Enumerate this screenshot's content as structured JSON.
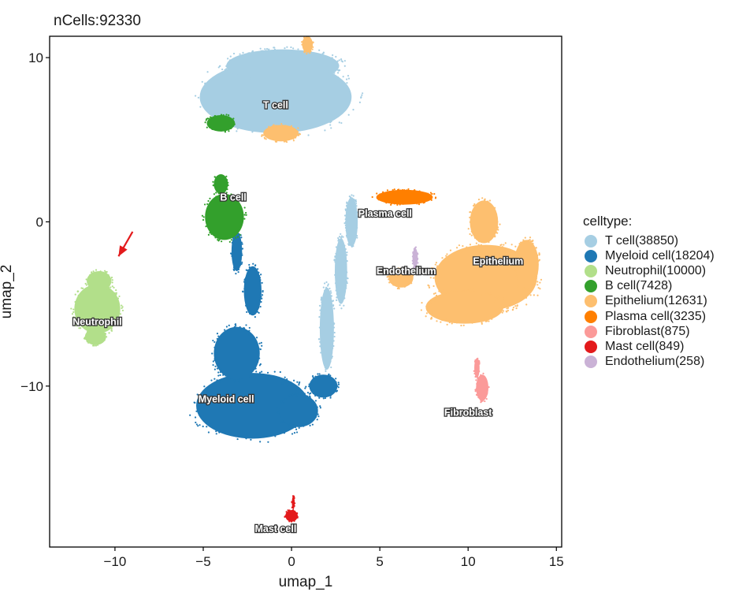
{
  "title": "nCells:92330",
  "chart_data": {
    "type": "scatter",
    "title": "nCells:92330",
    "xlabel": "umap_1",
    "ylabel": "umap_2",
    "xlim": [
      -13.7,
      15.3
    ],
    "ylim": [
      -19.8,
      11.3
    ],
    "xticks": [
      -10,
      -5,
      0,
      5,
      10,
      15
    ],
    "yticks": [
      10,
      0,
      -10
    ],
    "grid": false,
    "legend_position": "right",
    "legend_title": "celltype:",
    "series": [
      {
        "name": "T cell(38850)",
        "color": "#A6CEE3",
        "label": "T cell",
        "label_at": [
          -0.9,
          6.9
        ],
        "blobs": [
          [
            -0.9,
            7.6,
            4.3,
            2.2
          ],
          [
            -0.5,
            9.5,
            3.2,
            1.0
          ],
          [
            3.4,
            0.0,
            0.35,
            1.5
          ],
          [
            2.0,
            -6.5,
            0.4,
            2.5
          ],
          [
            2.8,
            -3.0,
            0.35,
            2.0
          ]
        ]
      },
      {
        "name": "Myeloid cell(18204)",
        "color": "#1F78B4",
        "label": "Myeloid cell",
        "label_at": [
          -3.7,
          -11.0
        ],
        "blobs": [
          [
            -2.2,
            -11.2,
            3.2,
            2.0
          ],
          [
            -3.1,
            -8.0,
            1.3,
            1.6
          ],
          [
            -2.2,
            -4.2,
            0.5,
            1.5
          ],
          [
            -3.1,
            -1.8,
            0.3,
            1.2
          ],
          [
            0.4,
            -11.5,
            1.1,
            1.0
          ],
          [
            1.8,
            -10.0,
            0.8,
            0.7
          ]
        ]
      },
      {
        "name": "Neutrophil(10000)",
        "color": "#B2DF8A",
        "label": "Neutrophil",
        "label_at": [
          -11.0,
          -6.3
        ],
        "blobs": [
          [
            -11.0,
            -5.3,
            1.3,
            1.5
          ],
          [
            -10.9,
            -3.6,
            0.7,
            0.6
          ],
          [
            -11.1,
            -7.0,
            0.6,
            0.5
          ]
        ]
      },
      {
        "name": "B cell(7428)",
        "color": "#33A02C",
        "label": "B cell",
        "label_at": [
          -3.3,
          1.3
        ],
        "blobs": [
          [
            -3.8,
            0.3,
            1.1,
            1.4
          ],
          [
            -4.0,
            2.3,
            0.4,
            0.6
          ],
          [
            -4.0,
            6.0,
            0.8,
            0.5
          ]
        ]
      },
      {
        "name": "Epithelium(12631)",
        "color": "#FDBF6F",
        "label": "Epithelium",
        "label_at": [
          11.7,
          -2.6
        ],
        "blobs": [
          [
            11.0,
            -3.4,
            2.9,
            2.0
          ],
          [
            9.8,
            -5.2,
            2.2,
            1.0
          ],
          [
            10.9,
            0.0,
            0.8,
            1.3
          ],
          [
            13.3,
            -2.6,
            0.7,
            1.5
          ],
          [
            6.2,
            -3.4,
            0.7,
            0.6
          ],
          [
            -0.6,
            5.4,
            1.0,
            0.5
          ],
          [
            0.9,
            10.8,
            0.3,
            0.5
          ]
        ]
      },
      {
        "name": "Plasma cell(3235)",
        "color": "#FF7F00",
        "label": "Plasma cell",
        "label_at": [
          5.3,
          0.3
        ],
        "blobs": [
          [
            6.4,
            1.5,
            1.6,
            0.45
          ]
        ]
      },
      {
        "name": "Fibroblast(875)",
        "color": "#FB9A99",
        "label": "Fibroblast",
        "label_at": [
          10.0,
          -11.8
        ],
        "blobs": [
          [
            10.8,
            -10.1,
            0.35,
            0.8
          ],
          [
            10.5,
            -8.9,
            0.15,
            0.6
          ]
        ]
      },
      {
        "name": "Mast cell(849)",
        "color": "#E31A1C",
        "label": "Mast cell",
        "label_at": [
          -0.9,
          -18.9
        ],
        "blobs": [
          [
            0.0,
            -17.9,
            0.35,
            0.35
          ],
          [
            0.1,
            -17.1,
            0.08,
            0.4
          ]
        ]
      },
      {
        "name": "Endothelium(258)",
        "color": "#CAB2D6",
        "label": "Endothelium",
        "label_at": [
          6.5,
          -3.2
        ],
        "blobs": [
          [
            7.0,
            -2.2,
            0.15,
            0.6
          ]
        ]
      }
    ],
    "annotations": [
      {
        "type": "arrow",
        "color": "#E31A1C",
        "from": [
          -9.0,
          -0.6
        ],
        "to": [
          -9.8,
          -2.1
        ]
      }
    ]
  }
}
